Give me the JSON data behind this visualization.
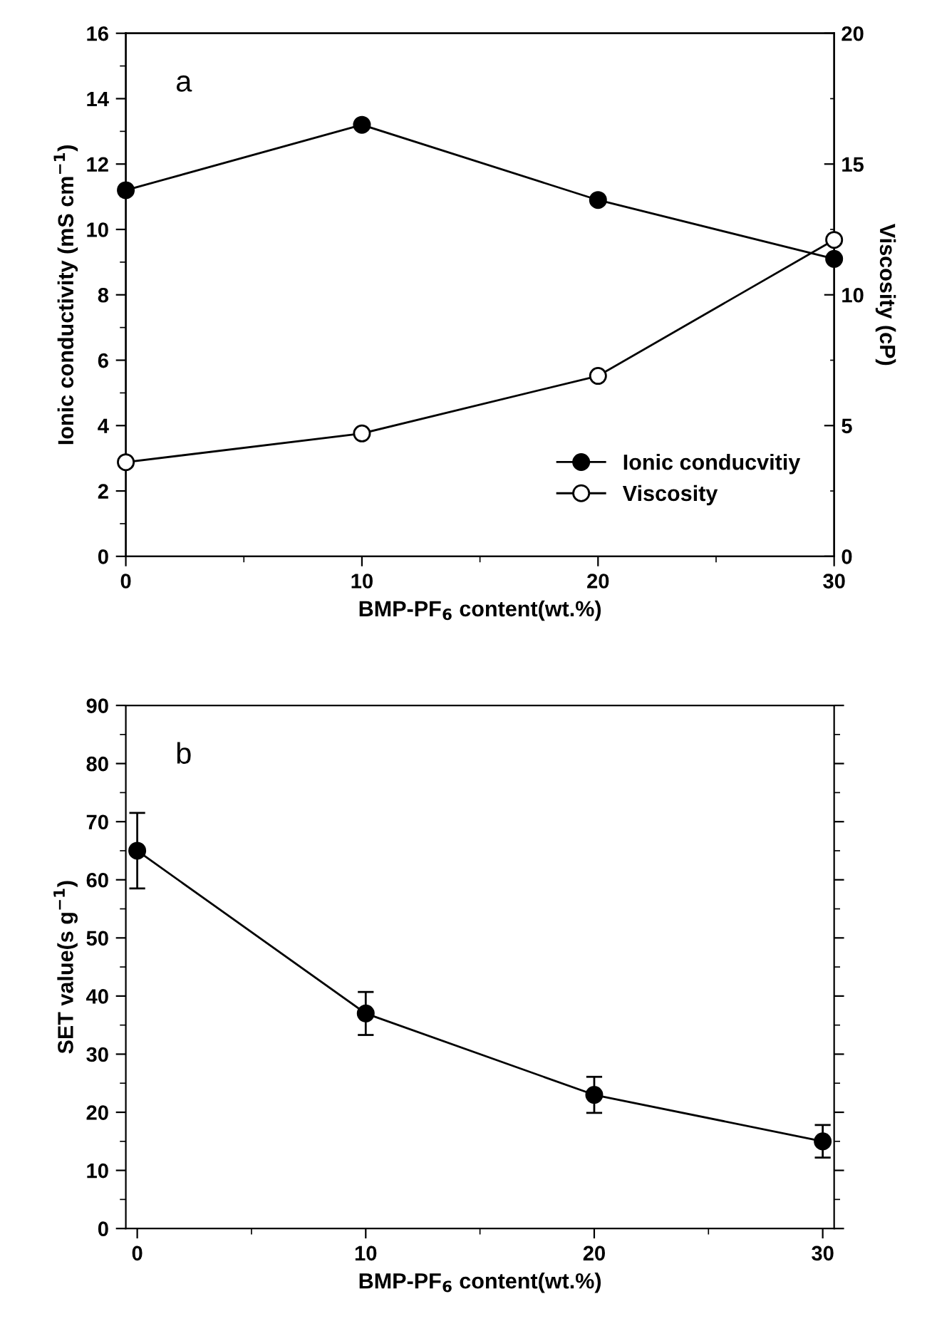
{
  "chart_data": [
    {
      "type": "line",
      "annotations": [
        "a"
      ],
      "xlabel": "BMP-PF$_{6}$ content(wt.%)",
      "ylabel": "Ionic conductivity (mS cm$^{−1}$)",
      "y2label": "Viscosity (cP)",
      "x": [
        0,
        10,
        20,
        30
      ],
      "xlim": [
        0,
        30
      ],
      "xticks": [
        0,
        10,
        20,
        30
      ],
      "ylim": [
        0,
        16
      ],
      "yticks": [
        0,
        2,
        4,
        6,
        8,
        10,
        12,
        14,
        16
      ],
      "y2lim": [
        0,
        20
      ],
      "y2ticks": [
        0,
        5,
        10,
        15,
        20
      ],
      "marker": "circle",
      "legend": "bottom right",
      "grid": false,
      "series": [
        {
          "name": "Ionic conducvitiy",
          "color": "#000000",
          "values": [
            11.2,
            13.2,
            10.9,
            9.1
          ]
        },
        {
          "name": "Viscosity",
          "color": "#000000",
          "axis": "y2",
          "values": [
            3.6,
            4.7,
            6.9,
            12.1
          ]
        }
      ]
    },
    {
      "type": "line",
      "annotations": [
        "b"
      ],
      "xlabel": "BMP-PF$_{6}$ content(wt.%)",
      "ylabel": "SET value(s g$^{−1}$)",
      "x": [
        0,
        10,
        20,
        30
      ],
      "xlim": [
        -0.5,
        30.5
      ],
      "xticks": [
        0,
        10,
        20,
        30
      ],
      "ylim": [
        0,
        90
      ],
      "yticks": [
        0,
        10,
        20,
        30,
        40,
        50,
        60,
        70,
        80,
        90
      ],
      "marker": "circle",
      "grid": false,
      "series": [
        {
          "color": "#000000",
          "values": [
            65,
            37,
            23,
            15
          ],
          "errors": [
            6.5,
            3.7,
            3.1,
            2.8
          ]
        }
      ]
    }
  ]
}
